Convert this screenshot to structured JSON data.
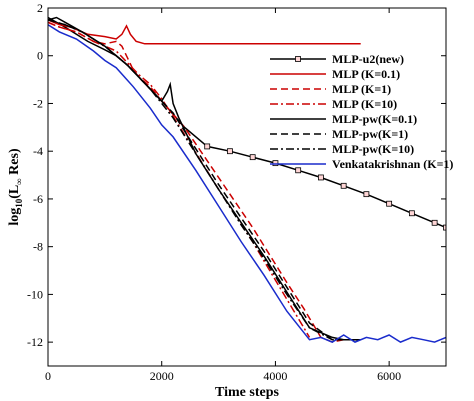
{
  "chart_data": {
    "type": "line",
    "xlabel": "Time steps",
    "ylabel_main": "log",
    "ylabel_sub": "10",
    "ylabel_paren": "(L",
    "ylabel_inf": "∞",
    "ylabel_rest": " Res)",
    "xlim": [
      0,
      7000
    ],
    "ylim": [
      -13,
      2
    ],
    "xticks": [
      0,
      2000,
      4000,
      6000
    ],
    "yticks": [
      2,
      0,
      -2,
      -4,
      -6,
      -8,
      -10,
      -12
    ],
    "grid": false,
    "legend_position": "top-right",
    "series": [
      {
        "name": "MLP-u2(new)",
        "color": "#000000",
        "dash": "",
        "marker": "square",
        "x": [
          0,
          150,
          300,
          500,
          700,
          1000,
          1200,
          1400,
          1600,
          2000,
          2400,
          2800,
          3200,
          3600,
          4000,
          4400,
          4800,
          5200,
          5600,
          6000,
          6400,
          6800,
          7000
        ],
        "y": [
          1.6,
          1.4,
          1.2,
          0.9,
          0.6,
          0.25,
          0.0,
          -0.4,
          -0.9,
          -1.9,
          -3.0,
          -3.8,
          -4.0,
          -4.25,
          -4.5,
          -4.8,
          -5.1,
          -5.45,
          -5.8,
          -6.2,
          -6.6,
          -7.0,
          -7.2
        ]
      },
      {
        "name": "MLP (K=0.1)",
        "color": "#cc0000",
        "dash": "",
        "marker": "",
        "x": [
          0,
          200,
          400,
          700,
          1000,
          1200,
          1300,
          1380,
          1450,
          1550,
          1700,
          2000,
          3000,
          4000,
          5000,
          5500
        ],
        "y": [
          1.5,
          1.3,
          1.2,
          0.9,
          0.8,
          0.7,
          0.9,
          1.25,
          0.9,
          0.6,
          0.5,
          0.5,
          0.5,
          0.5,
          0.5,
          0.5
        ]
      },
      {
        "name": "MLP (K=1)",
        "color": "#cc0000",
        "dash": "7,4",
        "marker": "",
        "x": [
          0,
          200,
          500,
          800,
          1000,
          1200,
          1300,
          1400,
          1500,
          1600,
          1700,
          1800,
          2000,
          2400,
          3000,
          3600,
          4200,
          4500,
          4700,
          4800,
          5000,
          5200
        ],
        "y": [
          1.4,
          1.2,
          1.0,
          0.6,
          0.5,
          0.6,
          0.4,
          -0.1,
          -0.6,
          -0.9,
          -1.1,
          -1.3,
          -1.9,
          -3.0,
          -5.1,
          -7.2,
          -9.5,
          -10.6,
          -11.4,
          -11.8,
          -12.0,
          -11.9
        ]
      },
      {
        "name": "MLP (K=10)",
        "color": "#cc0000",
        "dash": "8,3,2,3",
        "marker": "",
        "x": [
          0,
          200,
          500,
          800,
          1000,
          1200,
          1400,
          1600,
          1800,
          2000,
          2400,
          3000,
          3600,
          4000,
          4300,
          4400,
          4500,
          4600
        ],
        "y": [
          1.4,
          1.2,
          1.0,
          0.6,
          0.4,
          0.2,
          -0.3,
          -0.8,
          -1.2,
          -1.8,
          -3.3,
          -5.6,
          -7.8,
          -9.4,
          -10.6,
          -11.0,
          -11.4,
          -11.8
        ]
      },
      {
        "name": "MLP-pw(K=0.1)",
        "color": "#000000",
        "dash": "",
        "marker": "",
        "x": [
          0,
          150,
          300,
          600,
          1000,
          1400,
          1800,
          2000,
          2100,
          2150,
          2200,
          2300,
          2600,
          3000,
          3400,
          3800,
          4200,
          4600,
          5000,
          5200,
          5500
        ],
        "y": [
          1.5,
          1.6,
          1.4,
          1.0,
          0.4,
          -0.4,
          -1.4,
          -1.9,
          -1.5,
          -1.2,
          -2.0,
          -2.6,
          -4.1,
          -5.6,
          -7.0,
          -8.4,
          -9.9,
          -11.4,
          -11.8,
          -11.9,
          -11.9
        ]
      },
      {
        "name": "MLP-pw(K=1)",
        "color": "#000000",
        "dash": "7,4",
        "marker": "",
        "x": [
          0,
          300,
          600,
          1000,
          1400,
          1800,
          2200,
          2600,
          3000,
          3400,
          3800,
          4200,
          4600,
          5000,
          5400
        ],
        "y": [
          1.5,
          1.3,
          1.0,
          0.4,
          -0.4,
          -1.4,
          -2.4,
          -3.9,
          -5.4,
          -6.8,
          -8.2,
          -9.7,
          -11.2,
          -11.9,
          -11.9
        ]
      },
      {
        "name": "MLP-pw(K=10)",
        "color": "#000000",
        "dash": "8,3,2,3",
        "marker": "",
        "x": [
          0,
          300,
          600,
          1000,
          1400,
          1800,
          2200,
          2600,
          3000,
          3400,
          3800,
          4200,
          4600,
          5000,
          5400
        ],
        "y": [
          1.5,
          1.3,
          1.0,
          0.4,
          -0.4,
          -1.4,
          -2.6,
          -4.1,
          -5.6,
          -7.1,
          -8.5,
          -10.0,
          -11.4,
          -11.9,
          -11.9
        ]
      },
      {
        "name": "Venkatakrishnan (K=1)",
        "color": "#1a2ccc",
        "dash": "",
        "marker": "",
        "x": [
          0,
          200,
          500,
          800,
          1000,
          1200,
          1500,
          1800,
          2000,
          2200,
          2600,
          3000,
          3400,
          3800,
          4200,
          4600,
          4800,
          5000,
          5200,
          5400,
          5600,
          5800,
          6000,
          6200,
          6400,
          6600,
          6800,
          7000
        ],
        "y": [
          1.3,
          1.0,
          0.7,
          0.2,
          -0.2,
          -0.5,
          -1.3,
          -2.2,
          -2.9,
          -3.4,
          -4.8,
          -6.3,
          -7.8,
          -9.2,
          -10.7,
          -11.9,
          -11.8,
          -12.0,
          -11.7,
          -12.0,
          -11.8,
          -11.9,
          -11.7,
          -12.0,
          -11.8,
          -11.9,
          -12.0,
          -11.8
        ]
      }
    ]
  }
}
